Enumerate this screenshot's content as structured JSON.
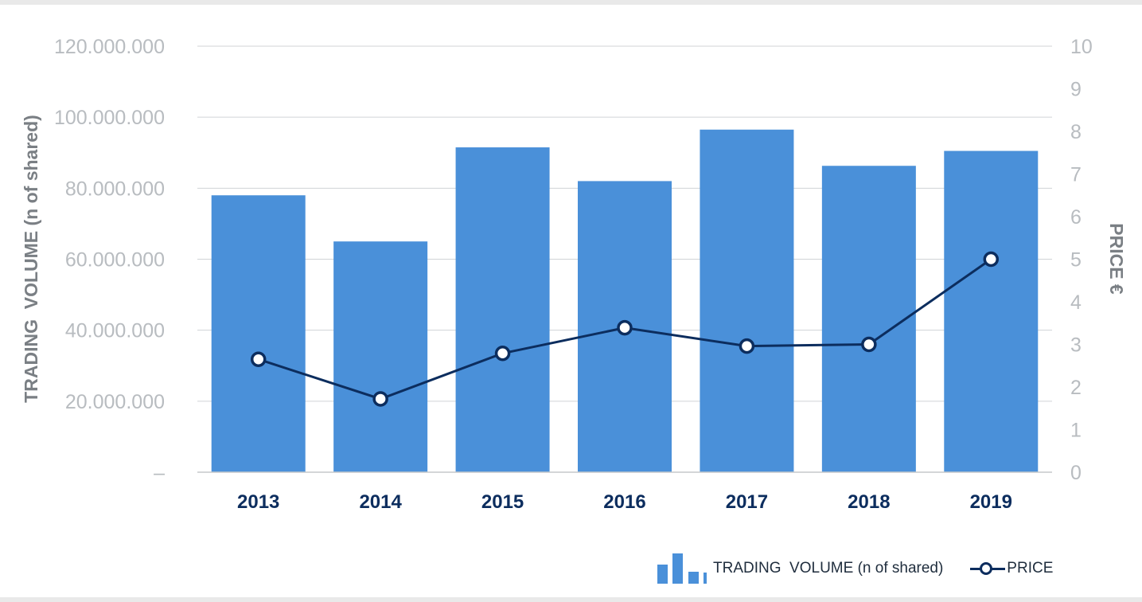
{
  "chart_data": {
    "type": "bar",
    "categories": [
      "2013",
      "2014",
      "2015",
      "2016",
      "2017",
      "2018",
      "2019"
    ],
    "series": [
      {
        "name": "TRADING  VOLUME (n of shared)",
        "type": "bar",
        "axis": "left",
        "values": [
          78000000,
          65000000,
          91500000,
          82000000,
          96500000,
          86300000,
          90500000
        ]
      },
      {
        "name": "PRICE",
        "type": "line",
        "axis": "right",
        "values": [
          2.65,
          1.72,
          2.79,
          3.39,
          2.96,
          3.0,
          5.0
        ]
      }
    ],
    "ylabel": "TRADING  VOLUME (n of shared)",
    "y2label": "PRICE €",
    "ylim": [
      0,
      120000000
    ],
    "y2lim": [
      0,
      10
    ],
    "yticks": [
      "–",
      "20.000.000",
      "40.000.000",
      "60.000.000",
      "80.000.000",
      "100.000.000",
      "120.000.000"
    ],
    "y2ticks": [
      "0",
      "1",
      "2",
      "3",
      "4",
      "5",
      "6",
      "7",
      "8",
      "9",
      "10"
    ],
    "grid": true,
    "legend_position": "bottom-right",
    "colors": {
      "bars": "#4a90d9",
      "line": "#0c2d5e",
      "tick_text": "#b8bcc0",
      "axis_title": "#7a7f84",
      "category_text": "#0c2d5e",
      "grid": "#d0d3d6"
    }
  },
  "legend": {
    "volume_label": "TRADING  VOLUME (n of shared)",
    "price_label": "PRICE"
  }
}
